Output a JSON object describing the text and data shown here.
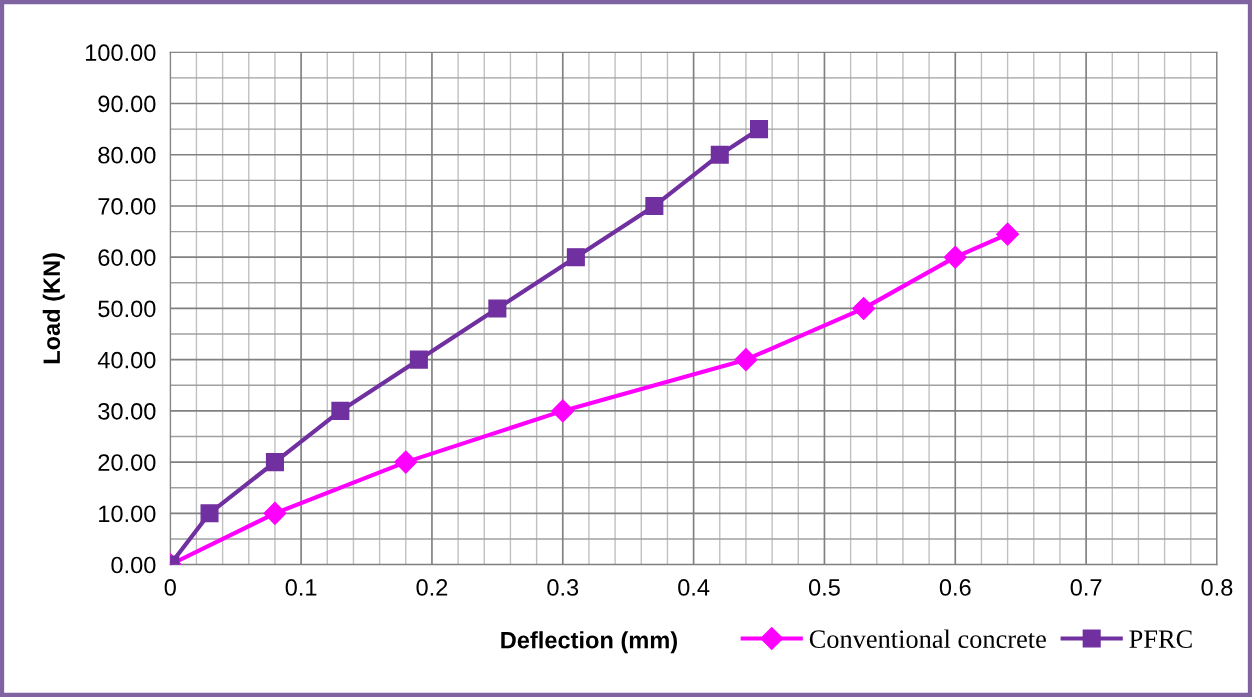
{
  "chart_data": {
    "type": "line",
    "xlabel": "Deflection (mm)",
    "ylabel": "Load (KN)",
    "xlim": [
      0,
      0.8
    ],
    "xticks": [
      0,
      0.1,
      0.2,
      0.3,
      0.4,
      0.5,
      0.6,
      0.7,
      0.8
    ],
    "ylim": [
      0,
      100
    ],
    "yticks": [
      {
        "value": 0,
        "label": "0.00"
      },
      {
        "value": 10,
        "label": "10.00"
      },
      {
        "value": 20,
        "label": "20.00"
      },
      {
        "value": 30,
        "label": "30.00"
      },
      {
        "value": 40,
        "label": "40.00"
      },
      {
        "value": 50,
        "label": "50.00"
      },
      {
        "value": 60,
        "label": "60.00"
      },
      {
        "value": 70,
        "label": "70.00"
      },
      {
        "value": 80,
        "label": "80.00"
      },
      {
        "value": 90,
        "label": "90.00"
      },
      {
        "value": 100,
        "label": "100.00"
      }
    ],
    "grid": true,
    "legend": "bottom right",
    "line_style": "solid",
    "series": [
      {
        "name": "Conventional concrete",
        "color": "#ff00ff",
        "marker": "diamond",
        "x": [
          0,
          0.08,
          0.18,
          0.3,
          0.44,
          0.53,
          0.6,
          0.64
        ],
        "values": [
          0,
          10,
          20,
          30,
          40,
          50,
          60,
          64.5
        ]
      },
      {
        "name": "PFRC",
        "color": "#7030a0",
        "marker": "square",
        "x": [
          0,
          0.03,
          0.08,
          0.13,
          0.19,
          0.25,
          0.31,
          0.37,
          0.42,
          0.45
        ],
        "values": [
          0,
          10,
          20,
          30,
          40,
          50,
          60,
          70,
          80,
          85
        ]
      }
    ]
  }
}
